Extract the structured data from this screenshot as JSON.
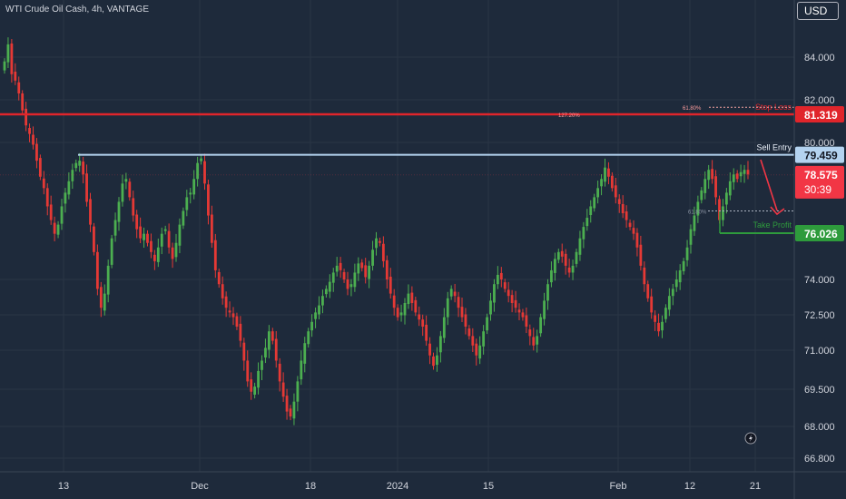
{
  "header": {
    "symbol_title": "WTI Crude Oil Cash, 4h, VANTAGE",
    "currency_button": "USD"
  },
  "chart_data": {
    "type": "candlestick",
    "ylim": [
      66.0,
      86.5
    ],
    "y_ticks": [
      "84.000",
      "82.000",
      "80.000",
      "74.000",
      "72.500",
      "71.000",
      "69.500",
      "68.000",
      "66.800"
    ],
    "x_ticks": [
      "13",
      "Dec",
      "18",
      "2024",
      "15",
      "Feb",
      "12",
      "21"
    ],
    "close_path": [
      83.8,
      84.6,
      83.2,
      82.9,
      82.3,
      81.5,
      80.8,
      80.4,
      79.9,
      79.2,
      78.5,
      78.0,
      77.2,
      76.6,
      76.0,
      76.4,
      77.2,
      77.8,
      78.3,
      78.8,
      79.1,
      79.2,
      78.6,
      77.4,
      76.4,
      75.2,
      73.6,
      72.8,
      73.4,
      74.6,
      75.8,
      76.6,
      77.4,
      78.2,
      78.4,
      77.6,
      76.8,
      76.2,
      75.8,
      76.0,
      75.6,
      75.2,
      74.8,
      75.4,
      76.0,
      76.2,
      75.4,
      74.9,
      75.6,
      76.4,
      77.0,
      77.6,
      77.8,
      78.4,
      79.1,
      79.3,
      78.2,
      76.8,
      75.6,
      74.4,
      73.8,
      73.2,
      72.8,
      72.6,
      72.4,
      72.0,
      71.4,
      70.6,
      69.8,
      69.4,
      69.6,
      70.2,
      70.6,
      71.1,
      71.8,
      71.4,
      70.6,
      69.8,
      69.2,
      68.6,
      68.4,
      69.0,
      69.8,
      70.6,
      71.3,
      71.8,
      72.2,
      72.6,
      72.9,
      73.3,
      73.6,
      73.9,
      74.3,
      74.6,
      74.4,
      74.0,
      73.6,
      73.8,
      74.3,
      74.7,
      74.5,
      74.1,
      74.6,
      75.3,
      75.8,
      75.6,
      74.8,
      74.0,
      73.4,
      72.8,
      72.4,
      72.6,
      73.0,
      73.4,
      73.0,
      72.6,
      72.3,
      72.0,
      71.4,
      70.8,
      70.4,
      70.8,
      71.6,
      72.4,
      73.2,
      73.6,
      73.3,
      72.8,
      72.4,
      72.0,
      71.6,
      71.2,
      70.8,
      71.2,
      71.8,
      72.4,
      73.1,
      73.8,
      74.2,
      74.0,
      73.6,
      73.3,
      73.0,
      72.8,
      72.6,
      72.4,
      72.0,
      71.6,
      71.2,
      71.6,
      72.4,
      73.1,
      73.8,
      74.4,
      74.9,
      75.2,
      75.0,
      74.6,
      74.3,
      74.6,
      75.2,
      75.8,
      76.3,
      76.7,
      77.2,
      77.6,
      78.0,
      78.4,
      78.9,
      78.5,
      78.0,
      77.6,
      77.3,
      76.9,
      76.6,
      76.3,
      76.0,
      75.4,
      74.6,
      73.8,
      73.2,
      72.6,
      72.2,
      71.8,
      72.2,
      72.8,
      73.3,
      73.6,
      74.0,
      74.4,
      74.8,
      75.4,
      76.2,
      76.8,
      77.4,
      77.9,
      78.4,
      78.8,
      78.4,
      77.6,
      76.6,
      77.2,
      77.8,
      78.3,
      78.6,
      78.4,
      78.7,
      78.8,
      78.6
    ],
    "levels": [
      {
        "label": "Stop Loss",
        "price": 81.319,
        "price_label": "81.319",
        "color": "#e0252b"
      },
      {
        "label": "Sell Entry",
        "price": 79.459,
        "price_label": "79.459",
        "color": "#b4d3f0"
      },
      {
        "label": "Take Profit",
        "price": 76.026,
        "price_label": "76.026",
        "color": "#2e9b3c"
      }
    ],
    "fib_labels": [
      {
        "label": "61.80%",
        "price": 81.65
      },
      {
        "label": "127.20%",
        "price": 81.319
      },
      {
        "label": "61.80%",
        "price": 77.0
      }
    ],
    "current_price": {
      "value": "78.575",
      "countdown": "30:39",
      "price": 78.575,
      "color": "#f23645"
    }
  }
}
